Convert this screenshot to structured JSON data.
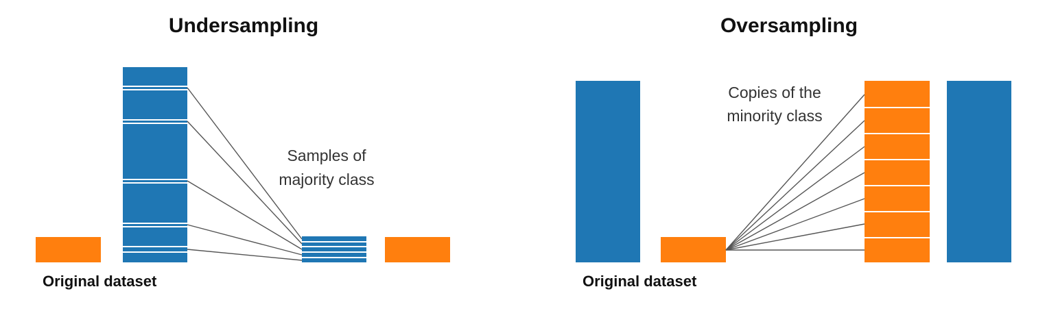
{
  "colors": {
    "majority": "#1f77b4",
    "minority": "#ff7f0e",
    "connector": "#555555",
    "separator": "#ffffff"
  },
  "undersampling": {
    "title": "Undersampling",
    "caption_line1": "Samples of",
    "caption_line2": "majority class",
    "dataset_label": "Original dataset"
  },
  "oversampling": {
    "title": "Oversampling",
    "caption_line1": "Copies of the",
    "caption_line2": "minority class",
    "dataset_label": "Original dataset"
  }
}
